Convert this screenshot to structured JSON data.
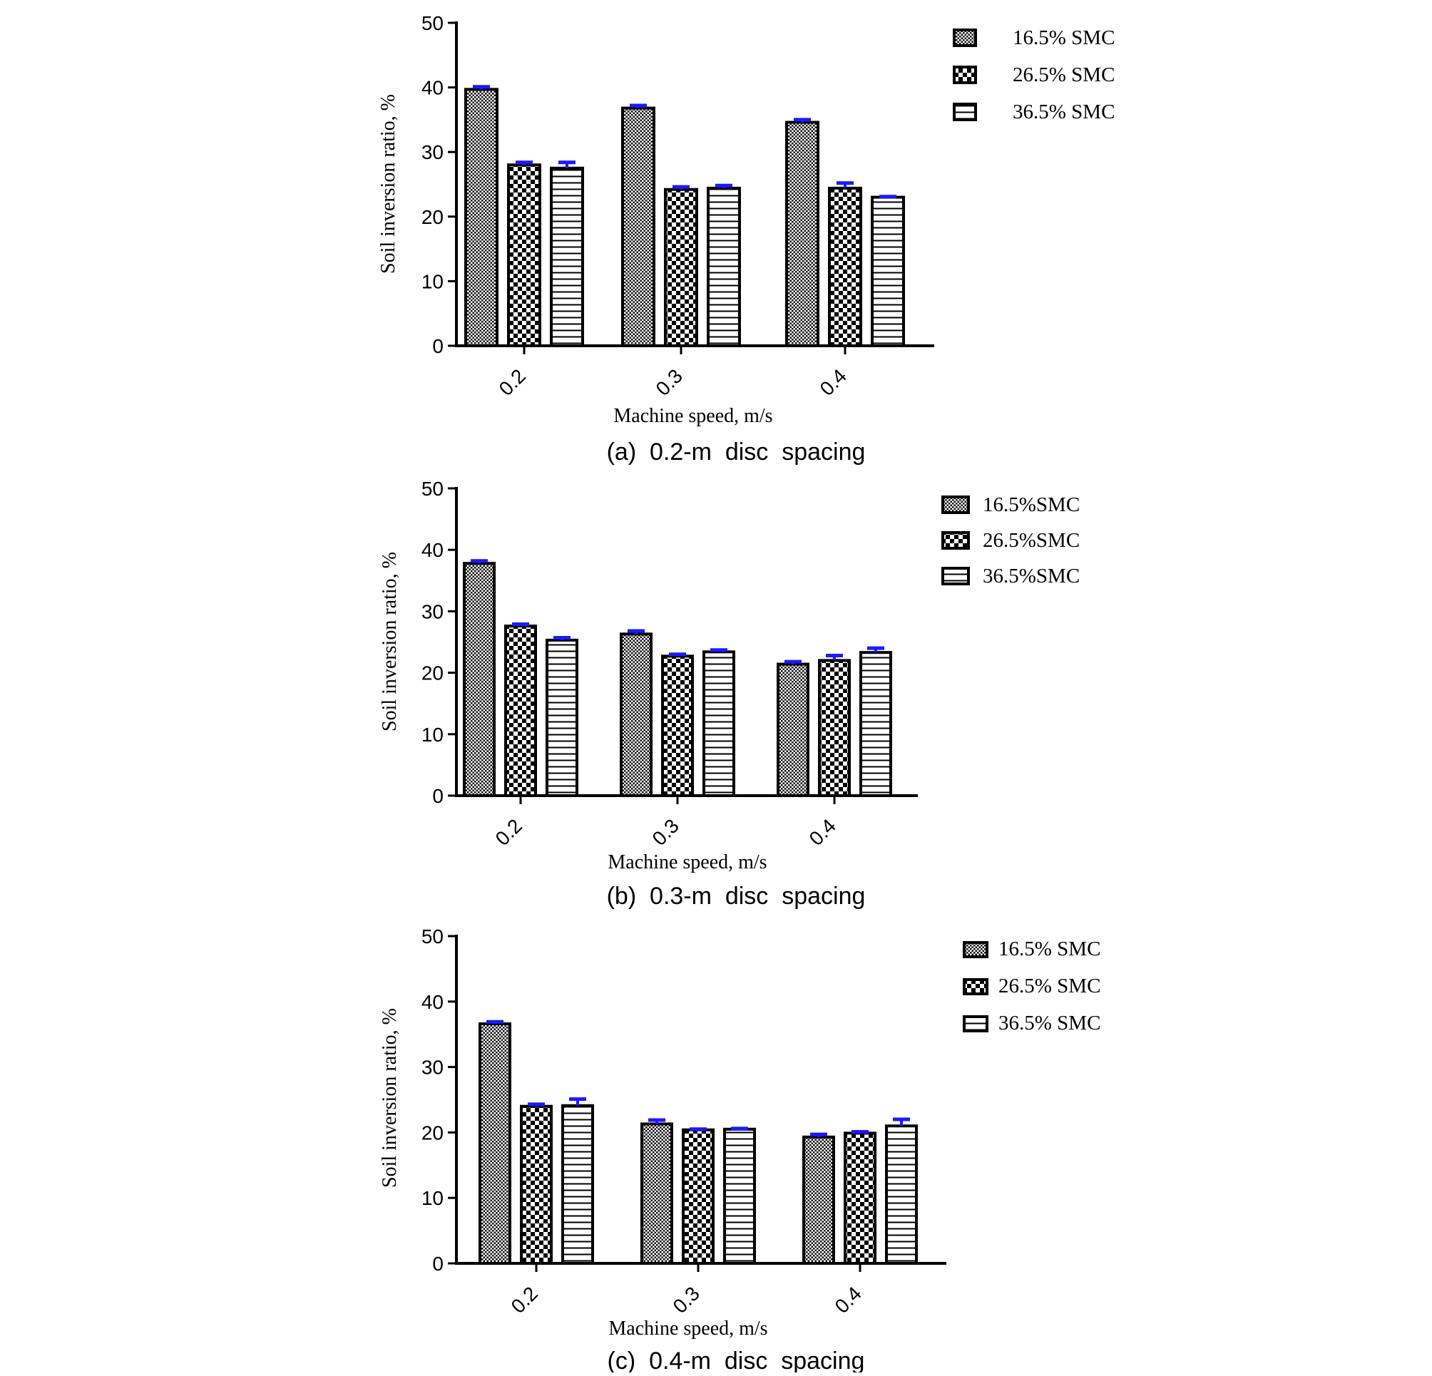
{
  "colors": {
    "bar_stroke": "#000000",
    "error_bar": "#1a1aff",
    "background": "#ffffff"
  },
  "chart_data": [
    {
      "type": "bar",
      "caption": "(a)  0.2-m  disc  spacing",
      "xlabel": "Machine speed, m/s",
      "ylabel": "Soil inversion  ratio, %",
      "ylim": [
        0,
        50
      ],
      "yticks": [
        "0",
        "10",
        "20",
        "30",
        "40",
        "50"
      ],
      "categories": [
        "0.2",
        "0.3",
        "0.4"
      ],
      "legend_position": "top-right",
      "series": [
        {
          "name": "16.5% SMC",
          "pattern": "fine-grid",
          "values": [
            39.7,
            36.8,
            34.6
          ],
          "errors": [
            0.4,
            0.4,
            0.4
          ]
        },
        {
          "name": "26.5% SMC",
          "pattern": "checker",
          "values": [
            28.0,
            24.2,
            24.4
          ],
          "errors": [
            0.4,
            0.4,
            0.8
          ]
        },
        {
          "name": "36.5% SMC",
          "pattern": "horizontal-lines",
          "values": [
            27.5,
            24.4,
            23.0
          ],
          "errors": [
            0.9,
            0.4,
            0.1
          ]
        }
      ]
    },
    {
      "type": "bar",
      "caption": "(b)  0.3-m  disc  spacing",
      "xlabel": "Machine speed, m/s",
      "ylabel": "Soil inversion  ratio, %",
      "ylim": [
        0,
        50
      ],
      "yticks": [
        "0",
        "10",
        "20",
        "30",
        "40",
        "50"
      ],
      "categories": [
        "0.2",
        "0.3",
        "0.4"
      ],
      "legend_position": "top-right",
      "series": [
        {
          "name": "16.5%SMC",
          "pattern": "fine-grid",
          "values": [
            37.8,
            26.3,
            21.4
          ],
          "errors": [
            0.4,
            0.5,
            0.4
          ]
        },
        {
          "name": "26.5%SMC",
          "pattern": "checker",
          "values": [
            27.6,
            22.7,
            22.0
          ],
          "errors": [
            0.3,
            0.3,
            0.8
          ]
        },
        {
          "name": "36.5%SMC",
          "pattern": "horizontal-lines",
          "values": [
            25.3,
            23.4,
            23.3
          ],
          "errors": [
            0.4,
            0.3,
            0.7
          ]
        }
      ]
    },
    {
      "type": "bar",
      "caption": "(c)  0.4-m  disc  spacing",
      "xlabel": "Machine speed, m/s",
      "ylabel": "Soil inversion  ratio, %",
      "ylim": [
        0,
        50
      ],
      "yticks": [
        "0",
        "10",
        "20",
        "30",
        "40",
        "50"
      ],
      "categories": [
        "0.2",
        "0.3",
        "0.4"
      ],
      "legend_position": "top-right",
      "series": [
        {
          "name": "16.5% SMC",
          "pattern": "fine-grid",
          "values": [
            36.6,
            21.3,
            19.3
          ],
          "errors": [
            0.3,
            0.6,
            0.4
          ]
        },
        {
          "name": "26.5% SMC",
          "pattern": "checker",
          "values": [
            24.0,
            20.4,
            19.9
          ],
          "errors": [
            0.3,
            0.1,
            0.2
          ]
        },
        {
          "name": "36.5% SMC",
          "pattern": "horizontal-lines",
          "values": [
            24.1,
            20.5,
            21.0
          ],
          "errors": [
            1.0,
            0.1,
            1.0
          ]
        }
      ]
    }
  ]
}
